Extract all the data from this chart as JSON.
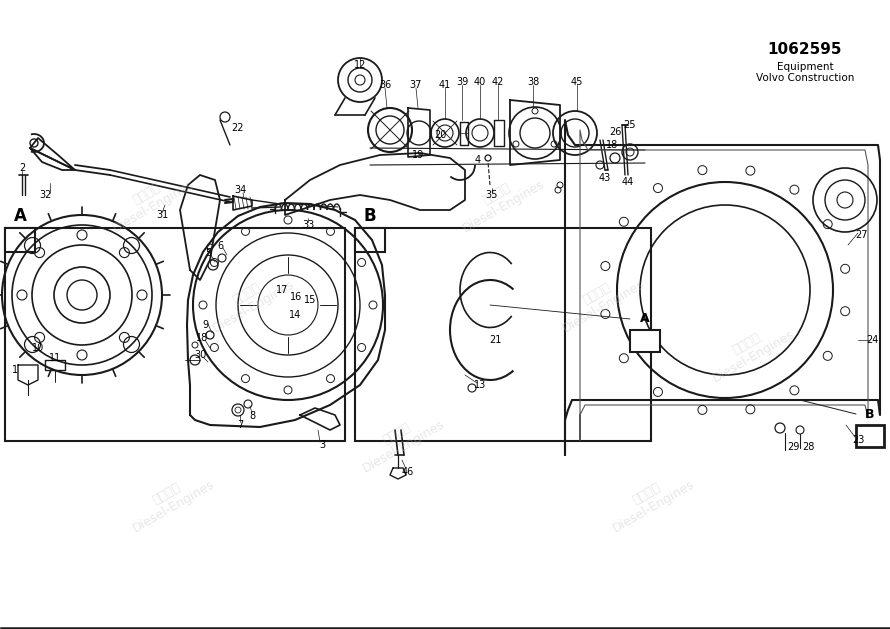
{
  "bg_color": "#ffffff",
  "line_color": "#1a1a1a",
  "part_number": "1062595",
  "company_line1": "Volvo Construction",
  "company_line2": "Equipment",
  "figsize": [
    8.9,
    6.29
  ],
  "dpi": 100
}
